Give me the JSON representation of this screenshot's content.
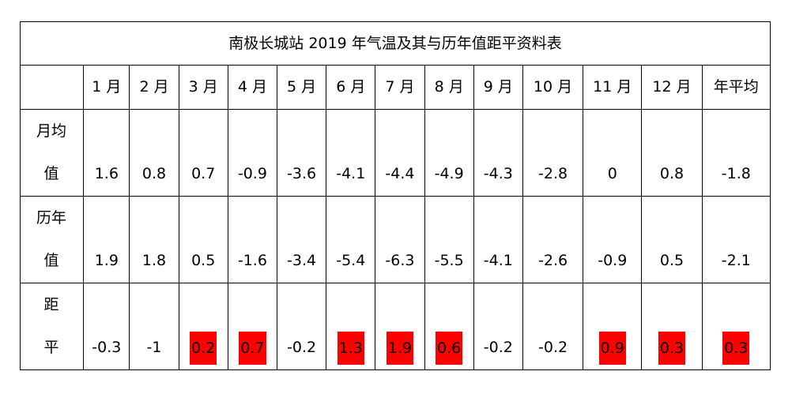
{
  "table": {
    "title": "南极长城站 2019 年气温及其与历年值距平资料表",
    "columns": [
      "1 月",
      "2 月",
      "3 月",
      "4 月",
      "5 月",
      "6 月",
      "7 月",
      "8 月",
      "9 月",
      "10 月",
      "11 月",
      "12 月",
      "年平均"
    ],
    "rows": [
      {
        "label_line1": "月均",
        "label_line2": "值",
        "values": [
          "1.6",
          "0.8",
          "0.7",
          "-0.9",
          "-3.6",
          "-4.1",
          "-4.4",
          "-4.9",
          "-4.3",
          "-2.8",
          "0",
          "0.8",
          "-1.8"
        ]
      },
      {
        "label_line1": "历年",
        "label_line2": "值",
        "values": [
          "1.9",
          "1.8",
          "0.5",
          "-1.6",
          "-3.4",
          "-5.4",
          "-6.3",
          "-5.5",
          "-4.1",
          "-2.6",
          "-0.9",
          "0.5",
          "-2.1"
        ]
      },
      {
        "label_line1": "距",
        "label_line2": "平",
        "values": [
          "-0.3",
          "-1",
          "0.2",
          "0.7",
          "-0.2",
          "1.3",
          "1.9",
          "0.6",
          "-0.2",
          "-0.2",
          "0.9",
          "0.3",
          "0.3"
        ],
        "highlighted": [
          false,
          false,
          true,
          true,
          false,
          true,
          true,
          true,
          false,
          false,
          true,
          true,
          true
        ]
      }
    ],
    "highlight_color": "#ff0000"
  }
}
